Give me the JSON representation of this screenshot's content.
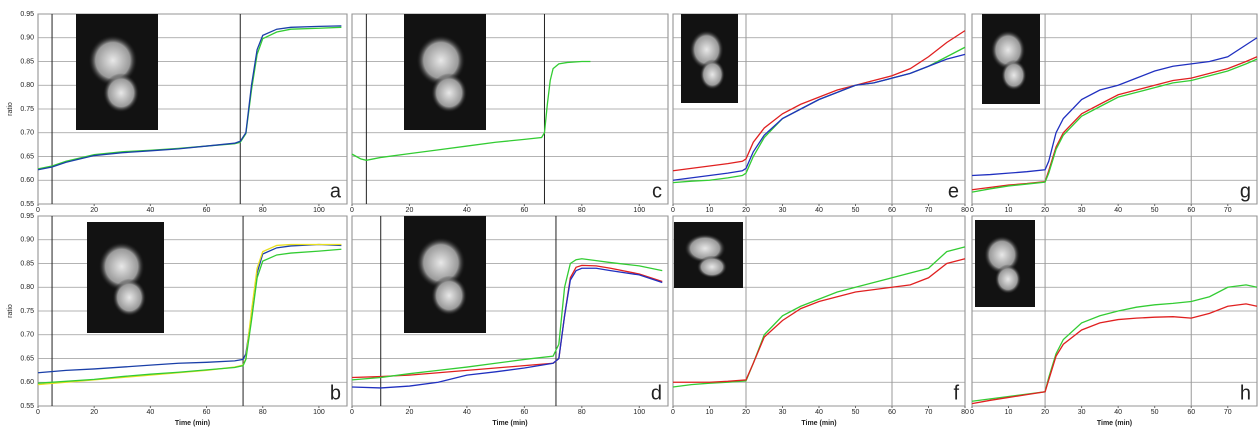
{
  "chart_data": [
    {
      "type": "line",
      "label": "a",
      "ylabel": "ratio",
      "x": [
        0,
        5,
        10,
        20,
        30,
        40,
        50,
        60,
        70,
        72,
        74,
        76,
        78,
        80,
        85,
        90,
        100,
        108
      ],
      "series": [
        {
          "color": "#33cc33",
          "values": [
            0.624,
            0.63,
            0.64,
            0.654,
            0.66,
            0.663,
            0.667,
            0.672,
            0.677,
            0.68,
            0.698,
            0.79,
            0.865,
            0.898,
            0.912,
            0.918,
            0.92,
            0.922
          ]
        },
        {
          "color": "#1a3fa8",
          "values": [
            0.622,
            0.628,
            0.638,
            0.652,
            0.658,
            0.662,
            0.666,
            0.672,
            0.678,
            0.682,
            0.7,
            0.8,
            0.875,
            0.905,
            0.918,
            0.922,
            0.924,
            0.925
          ]
        }
      ],
      "xlim": [
        0,
        110
      ],
      "xticks": [
        0,
        20,
        40,
        60,
        80,
        100
      ],
      "ylim": [
        0.55,
        0.95
      ],
      "yticks": [
        0.55,
        {
          "value": 0.6,
          "label": "0.60"
        },
        0.65,
        {
          "value": 0.7,
          "label": "0.70"
        },
        0.75,
        {
          "value": 0.8,
          "label": "0.80"
        },
        0.85,
        {
          "value": 0.9,
          "label": "0.90"
        },
        0.95
      ],
      "ytick_labels": true,
      "grid": true,
      "markers": [
        5,
        72
      ],
      "marker_color": "#222"
    },
    {
      "type": "line",
      "label": "c",
      "x": [
        0,
        3,
        5,
        10,
        20,
        30,
        40,
        50,
        60,
        66,
        67,
        68,
        69,
        70,
        72,
        75,
        80,
        83
      ],
      "series": [
        {
          "color": "#33cc33",
          "values": [
            0.655,
            0.645,
            0.642,
            0.648,
            0.656,
            0.664,
            0.672,
            0.68,
            0.686,
            0.69,
            0.7,
            0.76,
            0.81,
            0.835,
            0.845,
            0.848,
            0.85,
            0.85
          ]
        }
      ],
      "xlim": [
        0,
        110
      ],
      "xticks": [
        0,
        20,
        40,
        60,
        80,
        100
      ],
      "ylim": [
        0.55,
        0.95
      ],
      "yticks": [
        0.55,
        0.6,
        0.65,
        0.7,
        0.75,
        0.8,
        0.85,
        0.9,
        0.95
      ],
      "ytick_labels": false,
      "grid": true,
      "markers": [
        5,
        67
      ],
      "marker_color": "#222"
    },
    {
      "type": "line",
      "label": "e",
      "x": [
        0,
        5,
        10,
        15,
        19,
        20,
        22,
        25,
        30,
        35,
        40,
        45,
        50,
        55,
        60,
        65,
        70,
        75,
        80
      ],
      "series": [
        {
          "color": "#e02020",
          "values": [
            0.62,
            0.625,
            0.63,
            0.635,
            0.64,
            0.645,
            0.68,
            0.71,
            0.74,
            0.76,
            0.775,
            0.79,
            0.8,
            0.81,
            0.82,
            0.835,
            0.86,
            0.89,
            0.915
          ]
        },
        {
          "color": "#33cc33",
          "values": [
            0.595,
            0.598,
            0.6,
            0.605,
            0.61,
            0.615,
            0.65,
            0.69,
            0.73,
            0.75,
            0.77,
            0.785,
            0.8,
            0.805,
            0.815,
            0.825,
            0.84,
            0.86,
            0.88
          ]
        },
        {
          "color": "#2030c0",
          "values": [
            0.6,
            0.605,
            0.61,
            0.615,
            0.62,
            0.625,
            0.66,
            0.695,
            0.73,
            0.75,
            0.77,
            0.785,
            0.8,
            0.805,
            0.815,
            0.825,
            0.84,
            0.855,
            0.865
          ]
        }
      ],
      "xlim": [
        0,
        80
      ],
      "xticks": [
        0,
        10,
        20,
        30,
        40,
        50,
        60,
        70,
        80
      ],
      "ylim": [
        0.55,
        0.95
      ],
      "yticks": [
        0.55,
        0.6,
        0.65,
        0.7,
        0.75,
        0.8,
        0.85,
        0.9,
        0.95
      ],
      "ytick_labels": false,
      "grid": true,
      "markers": [
        20,
        60
      ],
      "marker_color": "#999"
    },
    {
      "type": "line",
      "label": "g",
      "x": [
        0,
        5,
        10,
        15,
        20,
        21,
        23,
        25,
        30,
        35,
        40,
        45,
        50,
        55,
        60,
        65,
        70,
        75,
        78
      ],
      "series": [
        {
          "color": "#2030c0",
          "values": [
            0.61,
            0.612,
            0.615,
            0.618,
            0.622,
            0.64,
            0.7,
            0.73,
            0.77,
            0.79,
            0.8,
            0.815,
            0.83,
            0.84,
            0.845,
            0.85,
            0.86,
            0.885,
            0.9
          ]
        },
        {
          "color": "#e02020",
          "values": [
            0.58,
            0.585,
            0.59,
            0.593,
            0.597,
            0.62,
            0.67,
            0.7,
            0.74,
            0.76,
            0.78,
            0.79,
            0.8,
            0.81,
            0.815,
            0.825,
            0.835,
            0.85,
            0.86
          ]
        },
        {
          "color": "#33cc33",
          "values": [
            0.575,
            0.582,
            0.588,
            0.592,
            0.596,
            0.615,
            0.665,
            0.695,
            0.735,
            0.755,
            0.775,
            0.785,
            0.795,
            0.805,
            0.81,
            0.82,
            0.83,
            0.845,
            0.855
          ]
        }
      ],
      "xlim": [
        0,
        78
      ],
      "xticks": [
        0,
        10,
        20,
        30,
        40,
        50,
        60,
        70
      ],
      "ylim": [
        0.55,
        0.95
      ],
      "yticks": [
        0.55,
        0.6,
        0.65,
        0.7,
        0.75,
        0.8,
        0.85,
        0.9,
        0.95
      ],
      "ytick_labels": false,
      "grid": true,
      "markers": [
        20,
        60
      ],
      "marker_color": "#999"
    },
    {
      "type": "line",
      "label": "b",
      "ylabel": "ratio",
      "xlabel": "Time (min)",
      "x": [
        0,
        10,
        20,
        30,
        40,
        50,
        60,
        70,
        73,
        74,
        76,
        78,
        80,
        85,
        90,
        100,
        108
      ],
      "series": [
        {
          "color": "#1a3fa8",
          "values": [
            0.62,
            0.625,
            0.628,
            0.632,
            0.636,
            0.64,
            0.642,
            0.645,
            0.648,
            0.66,
            0.74,
            0.83,
            0.87,
            0.883,
            0.887,
            0.89,
            0.888
          ]
        },
        {
          "color": "#e8e020",
          "values": [
            0.595,
            0.6,
            0.605,
            0.61,
            0.615,
            0.62,
            0.625,
            0.632,
            0.636,
            0.65,
            0.75,
            0.84,
            0.875,
            0.888,
            0.89,
            0.89,
            0.89
          ]
        },
        {
          "color": "#33cc33",
          "values": [
            0.598,
            0.602,
            0.606,
            0.612,
            0.617,
            0.621,
            0.626,
            0.631,
            0.635,
            0.648,
            0.73,
            0.82,
            0.855,
            0.868,
            0.872,
            0.876,
            0.88
          ]
        }
      ],
      "xlim": [
        0,
        110
      ],
      "xticks": [
        0,
        20,
        40,
        60,
        80,
        100
      ],
      "ylim": [
        0.55,
        0.95
      ],
      "yticks": [
        0.55,
        {
          "value": 0.6,
          "label": "0.60"
        },
        0.65,
        {
          "value": 0.7,
          "label": "0.70"
        },
        0.75,
        {
          "value": 0.8,
          "label": "0.80"
        },
        0.85,
        {
          "value": 0.9,
          "label": "0.90"
        },
        0.95
      ],
      "ytick_labels": true,
      "grid": true,
      "markers": [
        5,
        73
      ],
      "marker_color": "#222"
    },
    {
      "type": "line",
      "label": "d",
      "xlabel": "Time (min)",
      "x": [
        0,
        10,
        20,
        30,
        40,
        50,
        60,
        70,
        72,
        74,
        76,
        78,
        80,
        85,
        90,
        100,
        108
      ],
      "series": [
        {
          "color": "#e02020",
          "values": [
            0.61,
            0.612,
            0.615,
            0.62,
            0.625,
            0.63,
            0.635,
            0.64,
            0.65,
            0.74,
            0.82,
            0.842,
            0.846,
            0.845,
            0.84,
            0.828,
            0.812
          ]
        },
        {
          "color": "#33cc33",
          "values": [
            0.605,
            0.61,
            0.618,
            0.625,
            0.632,
            0.64,
            0.648,
            0.655,
            0.68,
            0.8,
            0.85,
            0.858,
            0.86,
            0.856,
            0.852,
            0.845,
            0.835
          ]
        },
        {
          "color": "#2030c0",
          "values": [
            0.59,
            0.588,
            0.592,
            0.6,
            0.615,
            0.622,
            0.63,
            0.64,
            0.65,
            0.74,
            0.815,
            0.835,
            0.84,
            0.84,
            0.835,
            0.826,
            0.81
          ]
        }
      ],
      "xlim": [
        0,
        110
      ],
      "xticks": [
        0,
        20,
        40,
        60,
        80,
        100
      ],
      "ylim": [
        0.55,
        0.95
      ],
      "yticks": [
        0.55,
        0.6,
        0.65,
        0.7,
        0.75,
        0.8,
        0.85,
        0.9,
        0.95
      ],
      "ytick_labels": false,
      "grid": true,
      "markers": [
        10,
        71
      ],
      "marker_color": "#222"
    },
    {
      "type": "line",
      "label": "f",
      "xlabel": "Time (min)",
      "x": [
        0,
        5,
        10,
        15,
        20,
        22,
        25,
        30,
        35,
        40,
        45,
        50,
        55,
        60,
        65,
        70,
        75,
        80
      ],
      "series": [
        {
          "color": "#33cc33",
          "values": [
            0.59,
            0.595,
            0.598,
            0.6,
            0.603,
            0.64,
            0.7,
            0.74,
            0.76,
            0.775,
            0.79,
            0.8,
            0.81,
            0.82,
            0.83,
            0.84,
            0.875,
            0.885
          ]
        },
        {
          "color": "#e02020",
          "values": [
            0.6,
            0.6,
            0.6,
            0.602,
            0.605,
            0.64,
            0.695,
            0.73,
            0.755,
            0.77,
            0.78,
            0.79,
            0.795,
            0.8,
            0.805,
            0.82,
            0.85,
            0.86
          ]
        }
      ],
      "xlim": [
        0,
        80
      ],
      "xticks": [
        0,
        10,
        20,
        30,
        40,
        50,
        60,
        70,
        80
      ],
      "ylim": [
        0.55,
        0.95
      ],
      "yticks": [
        0.55,
        0.6,
        0.65,
        0.7,
        0.75,
        0.8,
        0.85,
        0.9,
        0.95
      ],
      "ytick_labels": false,
      "grid": true,
      "markers": [
        20,
        60
      ],
      "marker_color": "#999"
    },
    {
      "type": "line",
      "label": "h",
      "xlabel": "Time (min)",
      "x": [
        0,
        5,
        10,
        15,
        20,
        21,
        23,
        25,
        30,
        35,
        40,
        45,
        50,
        55,
        60,
        65,
        70,
        75,
        78
      ],
      "series": [
        {
          "color": "#33cc33",
          "values": [
            0.56,
            0.565,
            0.57,
            0.575,
            0.58,
            0.61,
            0.66,
            0.69,
            0.725,
            0.74,
            0.75,
            0.758,
            0.763,
            0.766,
            0.77,
            0.78,
            0.8,
            0.805,
            0.8
          ]
        },
        {
          "color": "#e02020",
          "values": [
            0.555,
            0.562,
            0.568,
            0.574,
            0.58,
            0.605,
            0.655,
            0.68,
            0.71,
            0.725,
            0.732,
            0.735,
            0.737,
            0.738,
            0.735,
            0.745,
            0.76,
            0.765,
            0.76
          ]
        }
      ],
      "xlim": [
        0,
        78
      ],
      "xticks": [
        0,
        10,
        20,
        30,
        40,
        50,
        60,
        70
      ],
      "ylim": [
        0.55,
        0.95
      ],
      "yticks": [
        0.55,
        0.6,
        0.65,
        0.7,
        0.75,
        0.8,
        0.85,
        0.9,
        0.95
      ],
      "ytick_labels": false,
      "grid": true,
      "markers": [
        20,
        60
      ],
      "marker_color": "#999"
    }
  ]
}
